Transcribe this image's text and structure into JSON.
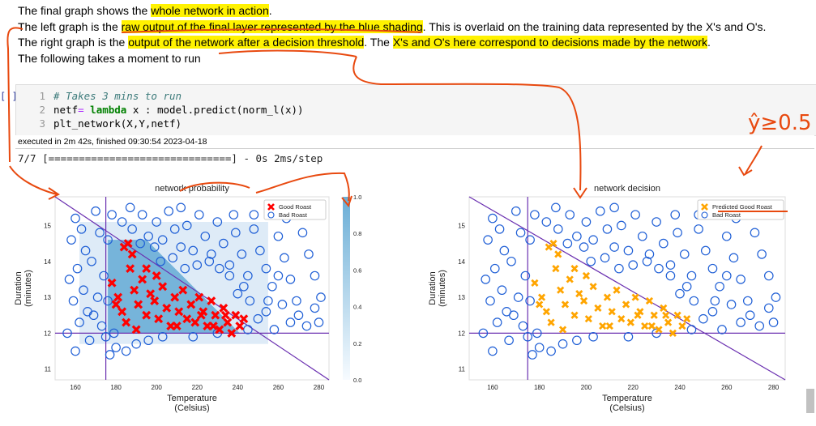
{
  "markdown": {
    "line1": {
      "a": "The final graph shows the ",
      "b": "whole network in action",
      "c": "."
    },
    "line2": {
      "a": "The left graph is the ",
      "b": "raw output of the final layer represented by the blue shading",
      "c": ". This is overlaid on the training data represented by the X's and O's."
    },
    "line3": {
      "a": "The right graph is the ",
      "b": "output of the network after a decision threshold",
      "c": ". The ",
      "d": "X's and O's here correspond to decisions made by the network",
      "e": "."
    },
    "line4": "The following takes a moment to run"
  },
  "cell": {
    "prompt": "[ ]:",
    "lines": [
      {
        "num": "1",
        "comment": "# Takes 3 mins to run"
      },
      {
        "num": "2",
        "p1": "netf",
        "p2": "= ",
        "kw": "lambda",
        "p3": " x : model.predict(norm_l(x))"
      },
      {
        "num": "3",
        "p1": "plt_network(X,Y,netf)"
      }
    ]
  },
  "exec_status": "executed in 2m 42s, finished 09:30:54 2023-04-18",
  "output_log": "7/7 [==============================] - 0s 2ms/step",
  "annotation": "ŷ≥0.5",
  "chart_data": [
    {
      "type": "scatter",
      "title": "network probability",
      "xlabel": "Temperature\n(Celsius)",
      "ylabel": "Duration\n(minutes)",
      "xlim": [
        150,
        285
      ],
      "ylim": [
        10.7,
        15.8
      ],
      "xticks": [
        "160",
        "180",
        "200",
        "220",
        "240",
        "260",
        "280"
      ],
      "yticks": [
        "11",
        "12",
        "13",
        "14",
        "15"
      ],
      "legend": [
        "Good Roast",
        "Bad Roast"
      ],
      "legend_position": "top-right",
      "colorbar_ticks": [
        "0.0",
        "0.2",
        "0.4",
        "0.6",
        "0.8",
        "1.0"
      ],
      "colors": {
        "good": "#ff0000",
        "bad": "#1f5fd6",
        "lines": "#6a2fb0",
        "shade": "#6aaed6"
      }
    },
    {
      "type": "scatter",
      "title": "network decision",
      "xlabel": "Temperature\n(Celsius)",
      "ylabel": "Duration\n(minutes)",
      "xlim": [
        150,
        285
      ],
      "ylim": [
        10.7,
        15.8
      ],
      "xticks": [
        "160",
        "180",
        "200",
        "220",
        "240",
        "260",
        "280"
      ],
      "yticks": [
        "11",
        "12",
        "13",
        "14",
        "15"
      ],
      "legend": [
        "Predicted Good Roast",
        "Bad Roast"
      ],
      "legend_position": "top-right",
      "colors": {
        "good": "#ffa500",
        "bad": "#1f5fd6",
        "lines": "#6a2fb0"
      }
    }
  ],
  "points": {
    "good": [
      [
        178,
        13.4
      ],
      [
        181,
        13.0
      ],
      [
        183,
        12.6
      ],
      [
        187,
        13.8
      ],
      [
        189,
        13.2
      ],
      [
        191,
        12.8
      ],
      [
        185,
        12.3
      ],
      [
        193,
        13.5
      ],
      [
        195,
        12.5
      ],
      [
        197,
        13.1
      ],
      [
        199,
        12.9
      ],
      [
        201,
        12.4
      ],
      [
        203,
        13.3
      ],
      [
        205,
        12.7
      ],
      [
        207,
        12.2
      ],
      [
        209,
        13.0
      ],
      [
        211,
        12.6
      ],
      [
        213,
        13.2
      ],
      [
        215,
        12.4
      ],
      [
        217,
        12.8
      ],
      [
        219,
        12.3
      ],
      [
        221,
        13.0
      ],
      [
        223,
        12.6
      ],
      [
        225,
        12.2
      ],
      [
        227,
        12.9
      ],
      [
        229,
        12.5
      ],
      [
        231,
        12.1
      ],
      [
        233,
        12.7
      ],
      [
        235,
        12.3
      ],
      [
        237,
        12.0
      ],
      [
        239,
        12.5
      ],
      [
        241,
        12.2
      ],
      [
        243,
        12.4
      ],
      [
        186,
        14.5
      ],
      [
        188,
        14.2
      ],
      [
        184,
        14.4
      ],
      [
        195,
        13.8
      ],
      [
        180,
        12.8
      ],
      [
        190,
        12.1
      ],
      [
        200,
        13.6
      ],
      [
        210,
        12.2
      ],
      [
        222,
        12.5
      ],
      [
        228,
        12.2
      ],
      [
        234,
        12.5
      ]
    ],
    "bad": [
      [
        160,
        15.2
      ],
      [
        163,
        14.9
      ],
      [
        158,
        14.6
      ],
      [
        165,
        14.3
      ],
      [
        161,
        13.8
      ],
      [
        157,
        13.5
      ],
      [
        164,
        13.2
      ],
      [
        159,
        12.9
      ],
      [
        166,
        12.6
      ],
      [
        162,
        12.3
      ],
      [
        156,
        12.0
      ],
      [
        170,
        15.4
      ],
      [
        172,
        14.8
      ],
      [
        168,
        14.0
      ],
      [
        174,
        13.6
      ],
      [
        176,
        12.9
      ],
      [
        169,
        12.5
      ],
      [
        175,
        11.9
      ],
      [
        180,
        11.6
      ],
      [
        185,
        11.5
      ],
      [
        190,
        11.7
      ],
      [
        178,
        15.3
      ],
      [
        183,
        15.1
      ],
      [
        188,
        14.9
      ],
      [
        193,
        15.3
      ],
      [
        196,
        14.7
      ],
      [
        200,
        15.1
      ],
      [
        203,
        14.6
      ],
      [
        206,
        15.4
      ],
      [
        209,
        14.9
      ],
      [
        212,
        14.4
      ],
      [
        215,
        15.0
      ],
      [
        218,
        14.3
      ],
      [
        221,
        15.3
      ],
      [
        224,
        14.7
      ],
      [
        227,
        14.2
      ],
      [
        230,
        15.1
      ],
      [
        233,
        14.5
      ],
      [
        236,
        13.9
      ],
      [
        239,
        14.8
      ],
      [
        242,
        14.2
      ],
      [
        245,
        13.6
      ],
      [
        248,
        14.9
      ],
      [
        251,
        14.3
      ],
      [
        254,
        13.8
      ],
      [
        257,
        13.3
      ],
      [
        260,
        14.7
      ],
      [
        263,
        14.1
      ],
      [
        266,
        13.5
      ],
      [
        269,
        12.9
      ],
      [
        272,
        14.8
      ],
      [
        275,
        14.2
      ],
      [
        278,
        13.6
      ],
      [
        281,
        13.0
      ],
      [
        270,
        12.5
      ],
      [
        274,
        12.2
      ],
      [
        278,
        12.7
      ],
      [
        266,
        12.3
      ],
      [
        262,
        12.8
      ],
      [
        258,
        12.1
      ],
      [
        254,
        12.6
      ],
      [
        250,
        12.4
      ],
      [
        246,
        12.9
      ],
      [
        243,
        13.3
      ],
      [
        240,
        13.1
      ],
      [
        236,
        13.6
      ],
      [
        231,
        13.8
      ],
      [
        226,
        14.0
      ],
      [
        220,
        13.9
      ],
      [
        214,
        13.8
      ],
      [
        208,
        14.1
      ],
      [
        202,
        14.0
      ],
      [
        199,
        14.4
      ],
      [
        192,
        14.5
      ],
      [
        176,
        14.6
      ],
      [
        171,
        13.0
      ],
      [
        173,
        12.2
      ],
      [
        179,
        12.0
      ],
      [
        196,
        11.8
      ],
      [
        203,
        11.9
      ],
      [
        258,
        15.4
      ],
      [
        264,
        15.2
      ],
      [
        276,
        15.3
      ],
      [
        248,
        15.3
      ],
      [
        255,
        12.9
      ],
      [
        260,
        13.6
      ],
      [
        280,
        12.3
      ],
      [
        160,
        11.5
      ],
      [
        167,
        11.8
      ],
      [
        177,
        11.4
      ],
      [
        230,
        12.0
      ],
      [
        245,
        12.1
      ],
      [
        218,
        11.9
      ],
      [
        238,
        15.3
      ],
      [
        212,
        15.5
      ],
      [
        187,
        15.5
      ]
    ]
  }
}
